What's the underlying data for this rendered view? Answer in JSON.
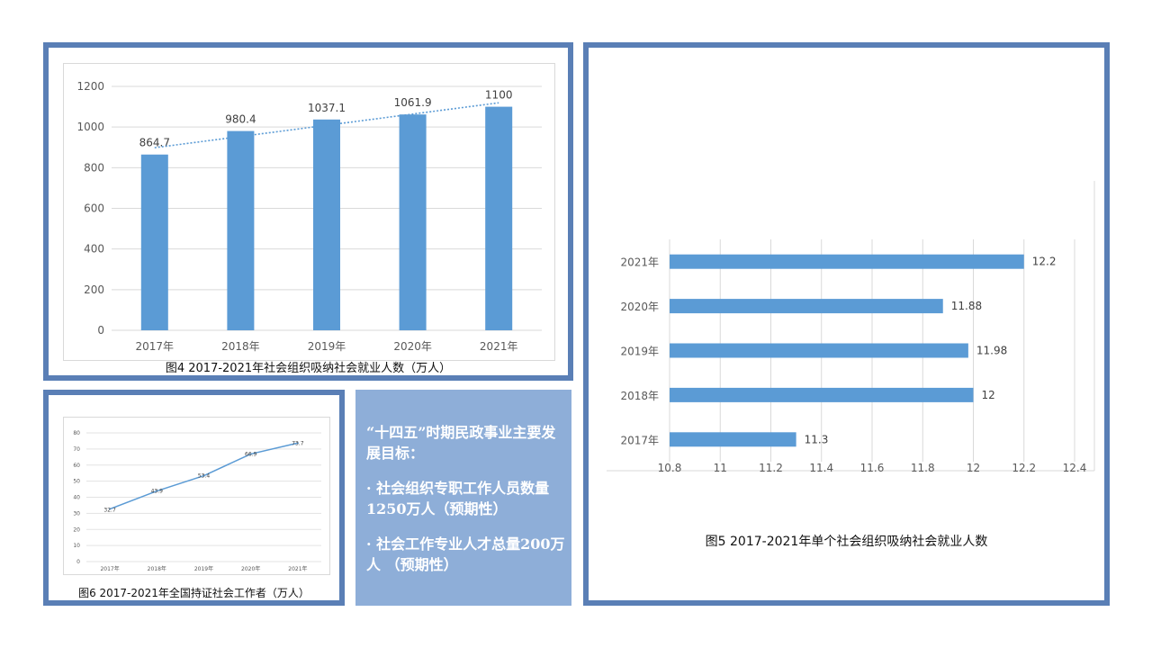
{
  "chart_data": [
    {
      "type": "bar",
      "categories": [
        "2017年",
        "2018年",
        "2019年",
        "2020年",
        "2021年"
      ],
      "values": [
        864.7,
        980.4,
        1037.1,
        1061.9,
        1100
      ],
      "data_labels": [
        "864.7",
        "980.4",
        "1037.1",
        "1061.9",
        "1100"
      ],
      "ylim": [
        0,
        1200
      ],
      "yticks": [
        "0",
        "200",
        "400",
        "600",
        "800",
        "1000",
        "1200"
      ],
      "trendline": "linear, dotted",
      "grid": true,
      "color": "#5b9bd5",
      "caption": "图4 2017-2021年社会组织吸纳社会就业人数（万人）"
    },
    {
      "type": "bar",
      "orientation": "horizontal",
      "categories": [
        "2021年",
        "2020年",
        "2019年",
        "2018年",
        "2017年"
      ],
      "values": [
        12.2,
        11.88,
        11.98,
        12,
        11.3
      ],
      "data_labels": [
        "12.2",
        "11.88",
        "11.98",
        "12",
        "11.3"
      ],
      "xlim": [
        10.8,
        12.4
      ],
      "xticks": [
        "10.8",
        "11",
        "11.2",
        "11.4",
        "11.6",
        "11.8",
        "12",
        "12.2",
        "12.4"
      ],
      "grid": true,
      "color": "#5b9bd5",
      "caption": "图5 2017-2021年单个社会组织吸纳社会就业人数"
    },
    {
      "type": "line",
      "categories": [
        "2017年",
        "2018年",
        "2019年",
        "2020年",
        "2021年"
      ],
      "values": [
        32.7,
        43.9,
        53.4,
        66.9,
        73.7
      ],
      "data_labels": [
        "32.7",
        "43.9",
        "53.4",
        "66.9",
        "73.7"
      ],
      "ylim": [
        0,
        80
      ],
      "yticks": [
        "0",
        "10",
        "20",
        "30",
        "40",
        "50",
        "60",
        "70",
        "80"
      ],
      "grid": true,
      "color": "#5b9bd5",
      "caption": "图6 2017-2021年全国持证社会工作者（万人）"
    }
  ],
  "textbox": {
    "title": "“十四五”时期民政事业主要发展目标：",
    "item1": "· 社会组织专职工作人员数量1250万人（预期性）",
    "item2": "· 社会工作专业人才总量200万人 （预期性）"
  }
}
